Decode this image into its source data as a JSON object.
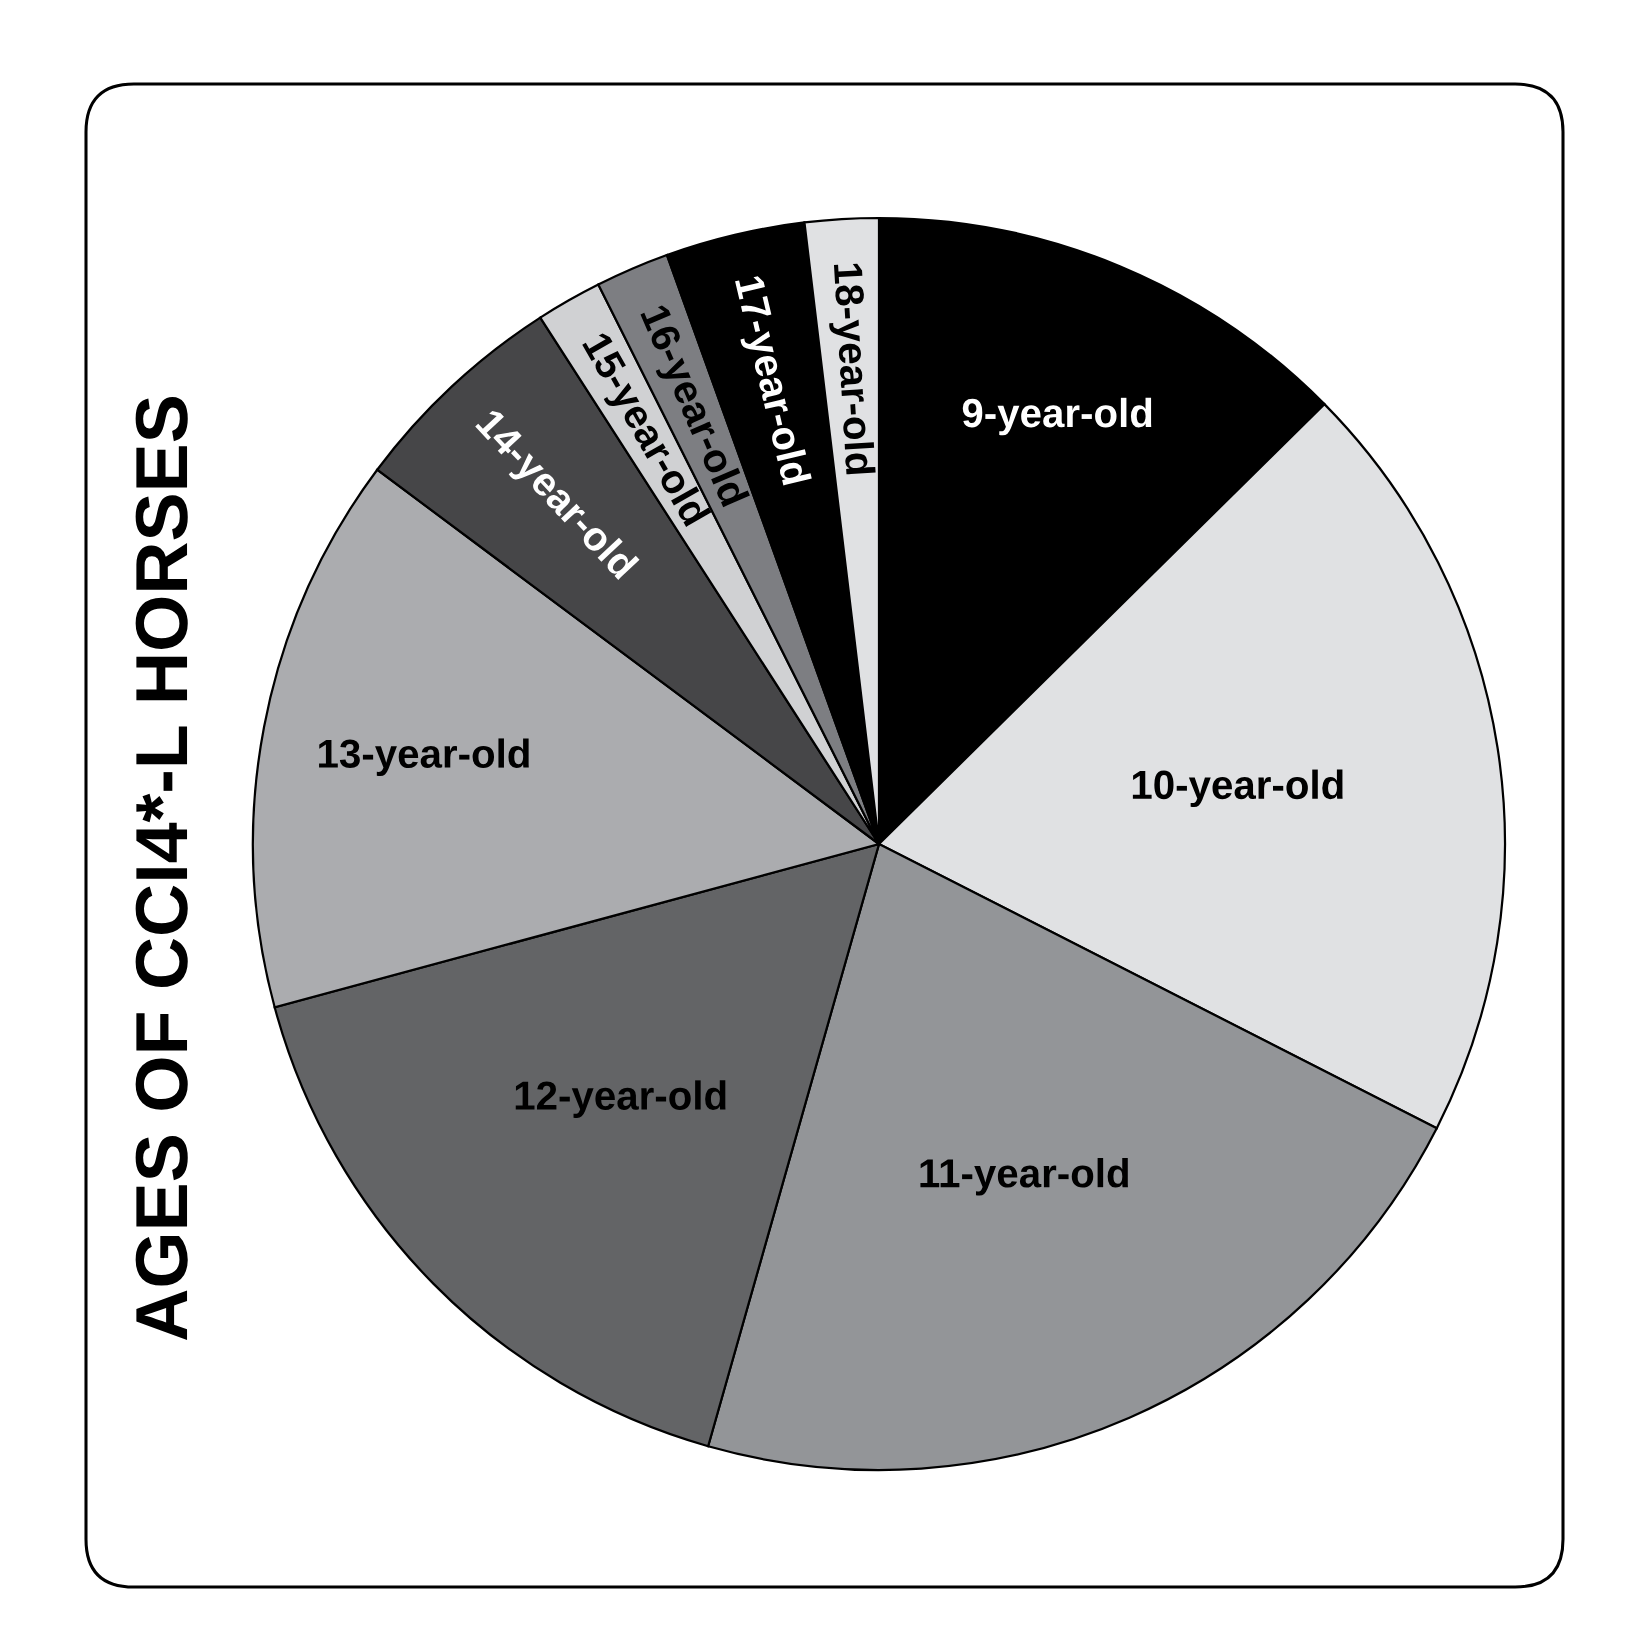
{
  "chart_data": {
    "type": "pie",
    "title": "AGES OF CCI4*-L HORSES",
    "categories": [
      "9-year-old",
      "10-year-old",
      "11-year-old",
      "12-year-old",
      "13-year-old",
      "14-year-old",
      "15-year-old",
      "16-year-old",
      "17-year-old",
      "18-year-old"
    ],
    "values": [
      12.6,
      19.9,
      21.9,
      16.4,
      14.4,
      5.7,
      1.7,
      1.9,
      3.6,
      1.9
    ],
    "colors": [
      "#000000",
      "#e0e1e3",
      "#939598",
      "#636466",
      "#abacaf",
      "#464648",
      "#d0d1d3",
      "#7d7e82",
      "#000000",
      "#e0e1e3"
    ]
  }
}
